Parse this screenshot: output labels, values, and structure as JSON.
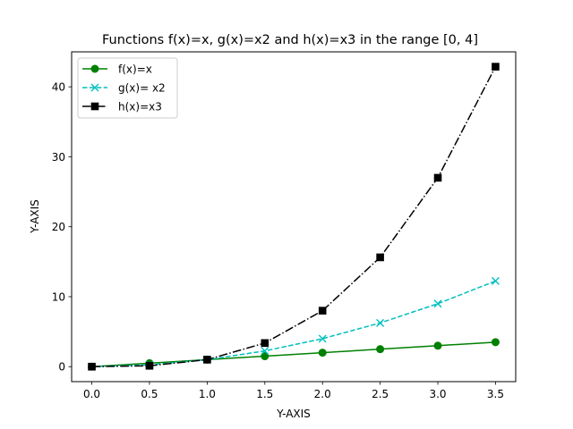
{
  "chart_data": {
    "type": "line",
    "title": "Functions f(x)=x, g(x)=x2 and h(x)=x3 in the range [0, 4]",
    "xlabel": "Y-AXIS",
    "ylabel": "Y-AXIS",
    "x": [
      0.0,
      0.5,
      1.0,
      1.5,
      2.0,
      2.5,
      3.0,
      3.5
    ],
    "xlim": [
      -0.175,
      3.675
    ],
    "ylim": [
      -2.14,
      45.0
    ],
    "xticks": [
      0.0,
      0.5,
      1.0,
      1.5,
      2.0,
      2.5,
      3.0,
      3.5
    ],
    "xtick_labels": [
      "0.0",
      "0.5",
      "1.0",
      "1.5",
      "2.0",
      "2.5",
      "3.0",
      "3.5"
    ],
    "yticks": [
      0,
      10,
      20,
      30,
      40
    ],
    "ytick_labels": [
      "0",
      "10",
      "20",
      "30",
      "40"
    ],
    "grid": false,
    "legend_position": "top-left",
    "series": [
      {
        "name": "f(x)=x",
        "values": [
          0.0,
          0.5,
          1.0,
          1.5,
          2.0,
          2.5,
          3.0,
          3.5
        ],
        "color": "#008000",
        "line_style": "solid",
        "marker": "circle"
      },
      {
        "name": "g(x)= x2",
        "values": [
          0.0,
          0.25,
          1.0,
          2.25,
          4.0,
          6.25,
          9.0,
          12.25
        ],
        "color": "#00bfbf",
        "line_style": "dashed",
        "marker": "x"
      },
      {
        "name": "h(x)=x3",
        "values": [
          0.0,
          0.125,
          1.0,
          3.375,
          8.0,
          15.625,
          27.0,
          42.875
        ],
        "color": "#000000",
        "line_style": "dashdot",
        "marker": "square"
      }
    ]
  }
}
